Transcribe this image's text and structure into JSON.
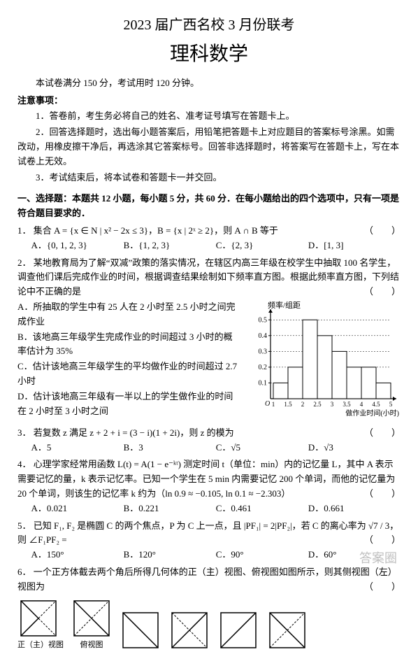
{
  "header": {
    "line1": "2023 届广西名校 3 月份联考",
    "line2": "理科数学",
    "meta": "本试卷满分 150 分，考试用时 120 分钟。"
  },
  "notice": {
    "head": "注意事项：",
    "items": [
      "1．答卷前，考生务必将自己的姓名、准考证号填写在答题卡上。",
      "2．回答选择题时，选出每小题答案后，用铅笔把答题卡上对应题目的答案标号涂黑。如需改动，用橡皮擦干净后，再选涂其它答案标号。回答非选择题时，将答案写在答题卡上，写在本试卷上无效。",
      "3．考试结束后，将本试卷和答题卡一并交回。"
    ]
  },
  "section1": {
    "head": "一、选择题：本题共 12 小题，每小题 5 分，共 60 分．在每小题给出的四个选项中，只有一项是符合题目要求的．"
  },
  "q1": {
    "num": "1．",
    "stem": "集合 A = {x ∈ N | x² − 2x ≤ 3}，B = {x | 2ˣ ≥ 2}，则 A ∩ B 等于",
    "paren": "（　　）",
    "opts": [
      "A．{0, 1, 2, 3}",
      "B．{1, 2, 3}",
      "C．{2, 3}",
      "D．[1, 3]"
    ]
  },
  "q2": {
    "num": "2．",
    "stem": "某地教育局为了解“双减”政策的落实情况，在辖区内高三年级在校学生中抽取 100 名学生，调查他们课后完成作业的时间，根据调查结果绘制如下频率直方图。根据此频率直方图，下列结论中不正确的是",
    "paren": "（　　）",
    "subs": [
      "A．所抽取的学生中有 25 人在 2 小时至 2.5 小时之间完成作业",
      "B．该地高三年级学生完成作业的时间超过 3 小时的概率估计为 35%",
      "C．估计该地高三年级学生的平均做作业的时间超过 2.7 小时",
      "D．估计该地高三年级有一半以上的学生做作业的时间在 2 小时至 3 小时之间"
    ],
    "chart": {
      "type": "histogram",
      "xlabel": "做作业时间(小时)",
      "ylabel": "频率/组距",
      "xticks": [
        "1",
        "1.5",
        "2",
        "2.5",
        "3",
        "3.5",
        "4",
        "4.5",
        "5"
      ],
      "yticks": [
        0.1,
        0.2,
        0.3,
        0.4,
        0.5
      ],
      "bars": [
        0.1,
        0.2,
        0.5,
        0.4,
        0.3,
        0.2,
        0.2,
        0.1
      ],
      "ylim": [
        0,
        0.55
      ],
      "bar_color": "#ffffff",
      "border_color": "#000000",
      "axis_fontsize": 10,
      "label_fontsize": 11,
      "bar_width": 1.0
    }
  },
  "q3": {
    "num": "3．",
    "stem": "若复数 z 满足 z + 2 + i = (3 − i)(1 + 2i)，则 z 的模为",
    "paren": "（　　）",
    "opts": [
      "A．5",
      "B．3",
      "C．√5",
      "D．√3"
    ]
  },
  "q4": {
    "num": "4．",
    "stem": "心理学家经常用函数 L(t) = A(1 − e⁻ᵏᵗ) 测定时间 t（单位：min）内的记忆量 L，其中 A 表示需要记忆的量，k 表示记忆率。已知一个学生在 5 min 内需要记忆 200 个单词，而他的记忆量为 20 个单词，则该生的记忆率 k 约为（ln 0.9 ≈ −0.105, ln 0.1 ≈ −2.303）",
    "paren": "（　　）",
    "opts": [
      "A．0.021",
      "B．0.221",
      "C．0.461",
      "D．0.661"
    ]
  },
  "q5": {
    "num": "5．",
    "stem": "已知 F₁, F₂ 是椭圆 C 的两个焦点，P 为 C 上一点，且 |PF₁| = 2|PF₂|，若 C 的离心率为 √7 / 3，则 ∠F₁PF₂ =",
    "paren": "（　　）",
    "opts": [
      "A．150°",
      "B．120°",
      "C．90°",
      "D．60°"
    ]
  },
  "q6": {
    "num": "6．",
    "stem": "一个正方体截去两个角后所得几何体的正（主）视图、俯视图如图所示，则其侧视图（左）视图为",
    "paren": "（　　）",
    "views": {
      "given": [
        {
          "label": "正（主）视图",
          "shape": "front"
        },
        {
          "label": "俯视图",
          "shape": "top"
        }
      ]
    }
  },
  "watermark": "答案圈"
}
